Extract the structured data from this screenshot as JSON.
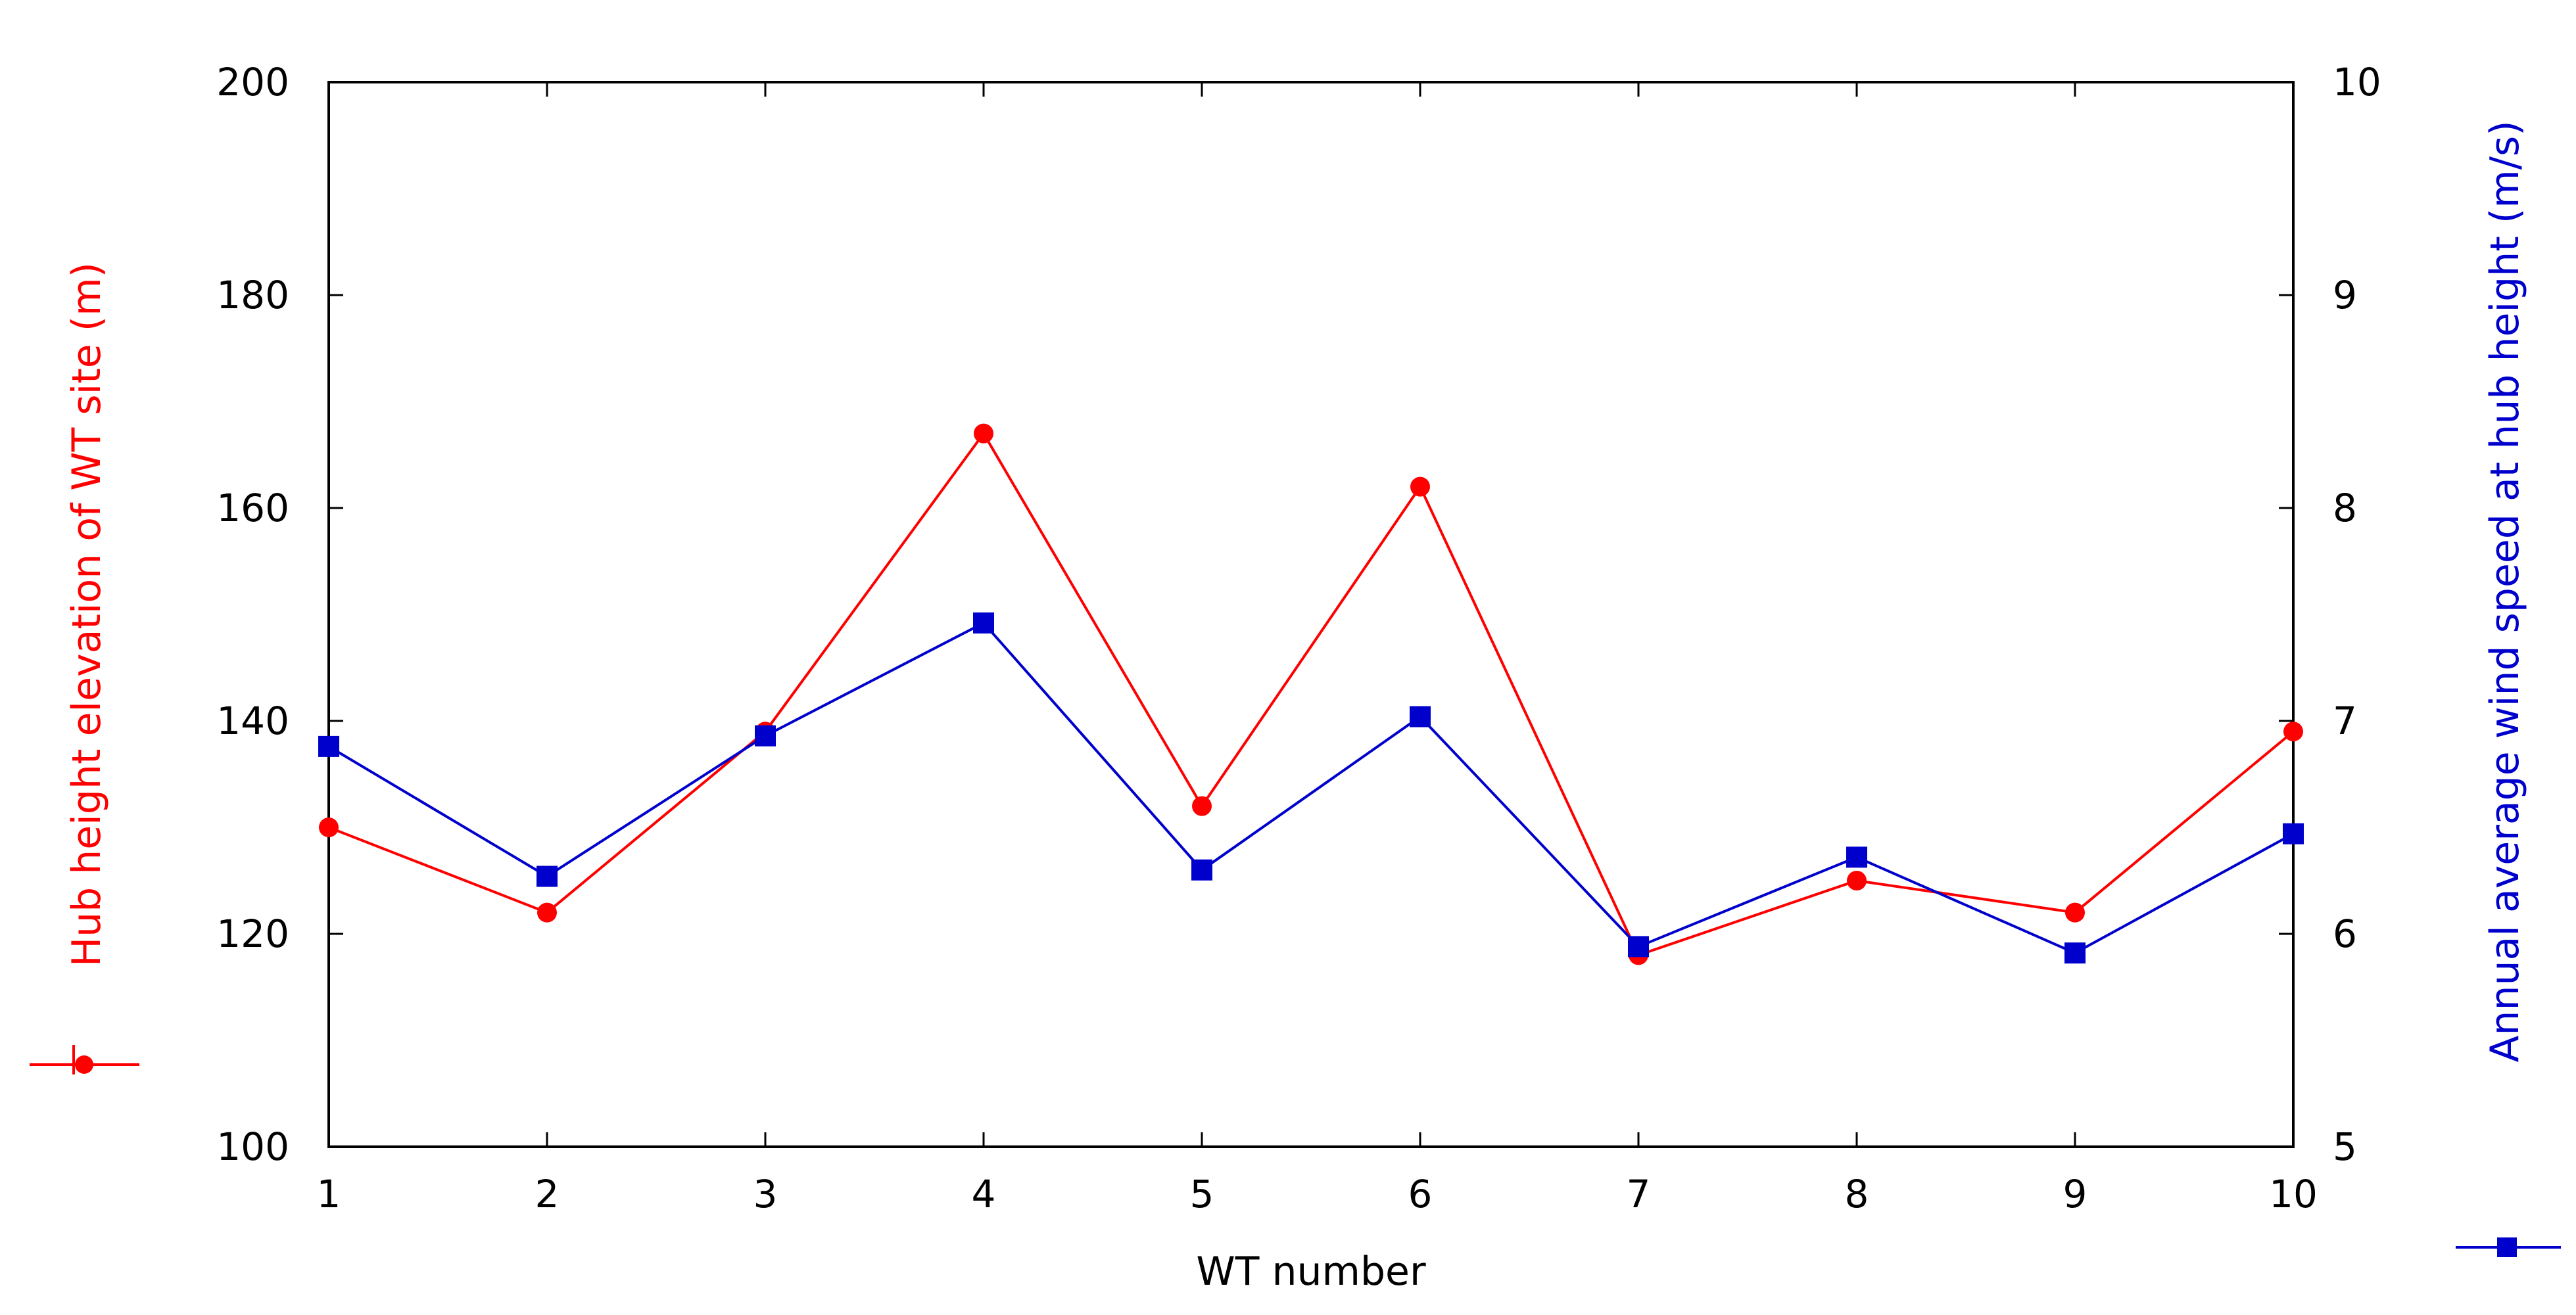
{
  "chart_data": {
    "type": "line",
    "x": [
      1,
      2,
      3,
      4,
      5,
      6,
      7,
      8,
      9,
      10
    ],
    "xlabel": "WT number",
    "xlim": [
      1,
      10
    ],
    "xticks": [
      "1",
      "2",
      "3",
      "4",
      "5",
      "6",
      "7",
      "8",
      "9",
      "10"
    ],
    "y_left": {
      "label": "Hub height elevation of WT site (m)",
      "lim": [
        100,
        200
      ],
      "ticks": [
        "100",
        "120",
        "140",
        "160",
        "180",
        "200"
      ],
      "color": "#ff0000"
    },
    "y_right": {
      "label": "Annual average wind speed at hub height (m/s)",
      "lim": [
        5,
        10
      ],
      "ticks": [
        "5",
        "6",
        "7",
        "8",
        "9",
        "10"
      ],
      "color": "#0000cc"
    },
    "series": [
      {
        "name": "Hub height elevation of WT site (m)",
        "axis": "left",
        "color": "#ff0000",
        "marker": "circle",
        "values": [
          130,
          122,
          139,
          167,
          132,
          162,
          118,
          125,
          122,
          139
        ]
      },
      {
        "name": "Annual average wind speed at hub height (m/s)",
        "axis": "right",
        "color": "#0000cc",
        "marker": "square",
        "values": [
          6.88,
          6.27,
          6.93,
          7.46,
          6.3,
          7.02,
          5.94,
          6.36,
          5.91,
          6.47
        ]
      }
    ],
    "grid": false
  }
}
